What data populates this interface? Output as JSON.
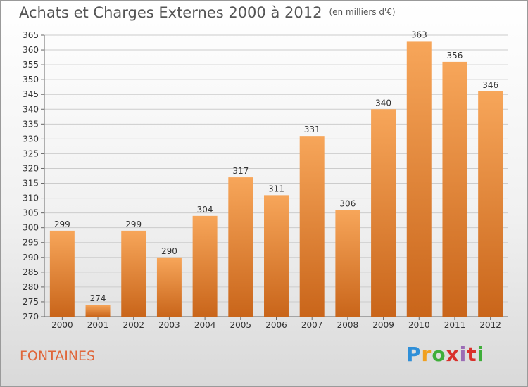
{
  "header": {
    "title": "Achats et Charges Externes 2000 à 2012",
    "unit": "(en milliers d'€)"
  },
  "footer": {
    "commune": "FONTAINES",
    "logo_letters": [
      "P",
      "r",
      "o",
      "x",
      "i",
      "t",
      "i"
    ]
  },
  "colors": {
    "bar_top": "#f7a65a",
    "bar_bottom": "#c9651a",
    "grid": "#cccccc",
    "title": "#555555",
    "commune": "#e0663a"
  },
  "chart_data": {
    "type": "bar",
    "title": "Achats et Charges Externes 2000 à 2012",
    "subtitle": "(en milliers d'€)",
    "xlabel": "",
    "ylabel": "",
    "categories": [
      "2000",
      "2001",
      "2002",
      "2003",
      "2004",
      "2005",
      "2006",
      "2007",
      "2008",
      "2009",
      "2010",
      "2011",
      "2012"
    ],
    "values": [
      299,
      274,
      299,
      290,
      304,
      317,
      311,
      331,
      306,
      340,
      363,
      356,
      346
    ],
    "ylim": [
      270,
      365
    ],
    "yticks": [
      270,
      275,
      280,
      285,
      290,
      295,
      300,
      305,
      310,
      315,
      320,
      325,
      330,
      335,
      340,
      345,
      350,
      355,
      360,
      365
    ],
    "grid": true,
    "legend": "none"
  }
}
